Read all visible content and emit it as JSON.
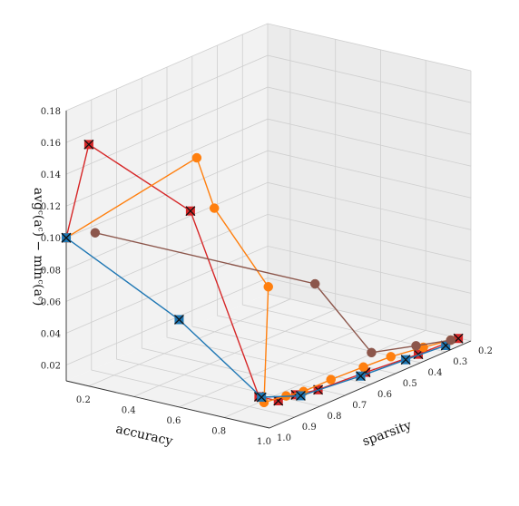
{
  "chart_data": {
    "type": "scatter",
    "projection": "3d",
    "title": "",
    "xlabel": "accuracy",
    "ylabel": "sparsity",
    "zlabel": "avg$_c(a_c) - \\min_c(a_c)$",
    "zlabel_display": "avgᶜ(aᶜ) − minᶜ(aᶜ)",
    "xlim": [
      0.1,
      1.0
    ],
    "ylim": [
      0.2,
      1.0
    ],
    "zlim": [
      0.01,
      0.18
    ],
    "grid": true,
    "x_ticks": [
      "0.2",
      "0.4",
      "0.6",
      "0.8",
      "1.0"
    ],
    "y_ticks": [
      "0.2",
      "0.3",
      "0.4",
      "0.5",
      "0.6",
      "0.7",
      "0.8",
      "0.9",
      "1.0"
    ],
    "z_ticks": [
      "0.02",
      "0.04",
      "0.06",
      "0.08",
      "0.10",
      "0.12",
      "0.14",
      "0.16",
      "0.18"
    ],
    "series": [
      {
        "color": "#d62728",
        "marker": "x-square",
        "points": [
          {
            "x": 0.1,
            "y": 1.0,
            "z": 0.1
          },
          {
            "x": 0.2,
            "y": 1.0,
            "z": 0.162
          },
          {
            "x": 0.65,
            "y": 1.0,
            "z": 0.135
          },
          {
            "x": 0.92,
            "y": 0.97,
            "z": 0.025
          },
          {
            "x": 0.95,
            "y": 0.92,
            "z": 0.02
          },
          {
            "x": 0.96,
            "y": 0.86,
            "z": 0.02
          },
          {
            "x": 0.97,
            "y": 0.78,
            "z": 0.018
          },
          {
            "x": 0.98,
            "y": 0.6,
            "z": 0.017
          },
          {
            "x": 0.99,
            "y": 0.4,
            "z": 0.015
          },
          {
            "x": 1.0,
            "y": 0.25,
            "z": 0.015
          }
        ]
      },
      {
        "color": "#ff7f0e",
        "marker": "circle",
        "points": [
          {
            "x": 0.1,
            "y": 1.0,
            "z": 0.1
          },
          {
            "x": 0.6,
            "y": 0.93,
            "z": 0.162
          },
          {
            "x": 0.7,
            "y": 0.95,
            "z": 0.135
          },
          {
            "x": 0.85,
            "y": 0.87,
            "z": 0.085
          },
          {
            "x": 0.92,
            "y": 0.95,
            "z": 0.02
          },
          {
            "x": 0.94,
            "y": 0.88,
            "z": 0.02
          },
          {
            "x": 0.95,
            "y": 0.82,
            "z": 0.019
          },
          {
            "x": 0.96,
            "y": 0.72,
            "z": 0.02
          },
          {
            "x": 0.97,
            "y": 0.6,
            "z": 0.02
          },
          {
            "x": 0.98,
            "y": 0.5,
            "z": 0.02
          },
          {
            "x": 0.99,
            "y": 0.38,
            "z": 0.018
          },
          {
            "x": 1.0,
            "y": 0.28,
            "z": 0.016
          }
        ]
      },
      {
        "color": "#1f77b4",
        "marker": "x-square",
        "points": [
          {
            "x": 0.1,
            "y": 1.0,
            "z": 0.1
          },
          {
            "x": 0.6,
            "y": 1.0,
            "z": 0.065
          },
          {
            "x": 0.92,
            "y": 0.96,
            "z": 0.024
          },
          {
            "x": 0.96,
            "y": 0.84,
            "z": 0.018
          },
          {
            "x": 0.98,
            "y": 0.62,
            "z": 0.016
          },
          {
            "x": 0.99,
            "y": 0.45,
            "z": 0.015
          },
          {
            "x": 1.0,
            "y": 0.3,
            "z": 0.014
          }
        ]
      },
      {
        "color": "#8c564b",
        "marker": "circle",
        "points": [
          {
            "x": 0.15,
            "y": 0.93,
            "z": 0.1
          },
          {
            "x": 0.7,
            "y": 0.55,
            "z": 0.06
          },
          {
            "x": 0.95,
            "y": 0.55,
            "z": 0.025
          },
          {
            "x": 0.98,
            "y": 0.4,
            "z": 0.02
          },
          {
            "x": 1.0,
            "y": 0.28,
            "z": 0.016
          }
        ]
      }
    ]
  }
}
